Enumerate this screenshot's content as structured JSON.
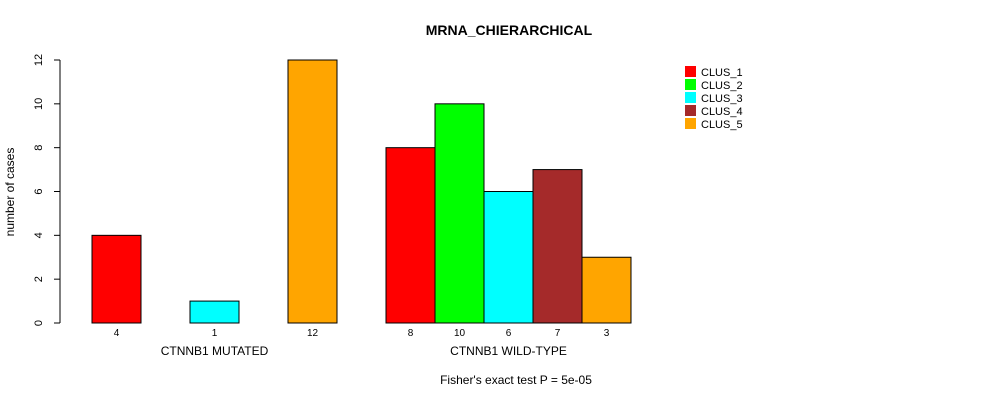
{
  "chart_data": {
    "type": "bar",
    "title": "MRNA_CHIERARCHICAL",
    "ylabel": "number of cases",
    "ylim": [
      0,
      12
    ],
    "yticks": [
      0,
      2,
      4,
      6,
      8,
      10,
      12
    ],
    "footnote": "Fisher's exact test P = 5e-05",
    "series_names": [
      "CLUS_1",
      "CLUS_2",
      "CLUS_3",
      "CLUS_4",
      "CLUS_5"
    ],
    "colors": [
      "#FF0000",
      "#00FF00",
      "#00FFFF",
      "#A52A2A",
      "#FFA500"
    ],
    "groups": [
      {
        "name": "CTNNB1 MUTATED",
        "values": [
          4,
          0,
          1,
          0,
          12
        ],
        "bar_labels": [
          "4",
          "",
          "1",
          "",
          "12"
        ]
      },
      {
        "name": "CTNNB1 WILD-TYPE",
        "values": [
          8,
          10,
          6,
          7,
          3
        ],
        "bar_labels": [
          "8",
          "10",
          "6",
          "7",
          "3"
        ]
      }
    ]
  }
}
